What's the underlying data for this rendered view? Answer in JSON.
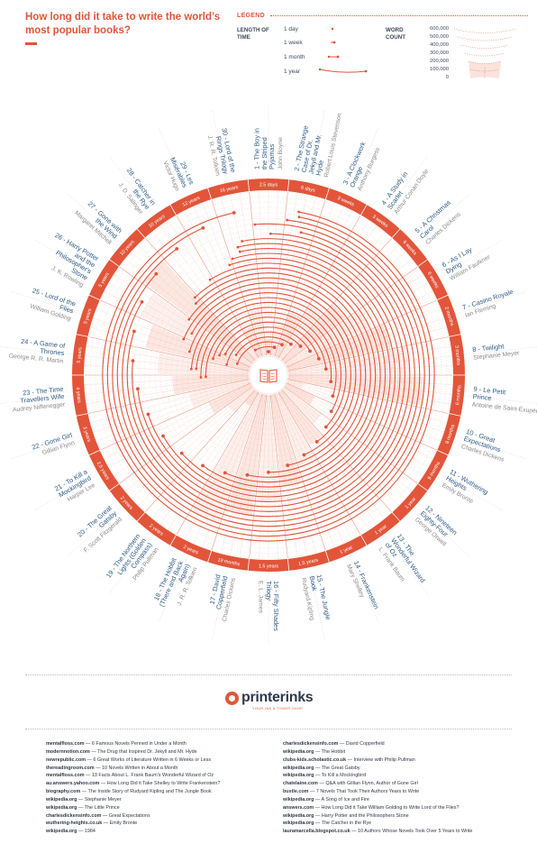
{
  "title": "How long did it take to write the world’s most popular books?",
  "legend": {
    "heading": "LEGEND",
    "length_title": "LENGTH OF TIME",
    "length_items": [
      "1 day",
      "1 week",
      "1 month",
      "1 year"
    ],
    "wordcount_title": "WORD COUNT",
    "wordcount_items": [
      "600,000",
      "500,000",
      "400,000",
      "300,000",
      "200,000",
      "100,000",
      "0"
    ]
  },
  "colors": {
    "accent": "#e2553a",
    "navy": "#2d3a4a",
    "blue": "#2f5c88",
    "grey": "#8a8a8a",
    "band": "#fbe3dc"
  },
  "chart_data": {
    "type": "radial",
    "title": "How long did it take to write the world’s most popular books?",
    "books": [
      {
        "n": "1",
        "title": "The Boy in the Striped Pyjamas",
        "author": "John Boyne",
        "time": "2.5 days",
        "years": 0.0068
      },
      {
        "n": "2",
        "title": "The Strange Case of Dr. Jekyll and Mr. Hyde",
        "author": "Robert Louis Stevenson",
        "time": "6 days",
        "years": 0.0164
      },
      {
        "n": "3",
        "title": "A Clockwork Orange",
        "author": "Anthony Burgess",
        "time": "3 weeks",
        "years": 0.0575
      },
      {
        "n": "4",
        "title": "A Study in Scarlet",
        "author": "Arthur Conan Doyle",
        "time": "3 weeks",
        "years": 0.0575
      },
      {
        "n": "5",
        "title": "A Christmas Carol",
        "author": "Charles Dickens",
        "time": "6 weeks",
        "years": 0.115
      },
      {
        "n": "6",
        "title": "As I Lay Dying",
        "author": "William Faulkner",
        "time": "6 weeks",
        "years": 0.115
      },
      {
        "n": "7",
        "title": "Casino Royale",
        "author": "Ian Fleming",
        "time": "2 months",
        "years": 0.1667
      },
      {
        "n": "8",
        "title": "Twilight",
        "author": "Stephanie Meyer",
        "time": "3 months",
        "years": 0.25
      },
      {
        "n": "9",
        "title": "Le Petit Prince",
        "author": "Antoine de Saint-Exupéry",
        "time": "6 months",
        "years": 0.5
      },
      {
        "n": "10",
        "title": "Great Expectations",
        "author": "Charles Dickens",
        "time": "8 months",
        "years": 0.6667
      },
      {
        "n": "11",
        "title": "Wuthering Heights",
        "author": "Emily Brontë",
        "time": "9 months",
        "years": 0.75
      },
      {
        "n": "12",
        "title": "Nineteen Eighty-Four",
        "author": "George Orwell",
        "time": "1 year",
        "years": 1
      },
      {
        "n": "13",
        "title": "The Wonderful Wizard of Oz",
        "author": "L. Frank Baum",
        "time": "1 year",
        "years": 1
      },
      {
        "n": "14",
        "title": "Frankenstein",
        "author": "Mary Shelley",
        "time": "1 year",
        "years": 1
      },
      {
        "n": "15",
        "title": "The Jungle Book",
        "author": "Rudyard Kipling",
        "time": "1.5 years",
        "years": 1.5
      },
      {
        "n": "16",
        "title": "Fifty Shades Trilogy",
        "author": "E. L. James",
        "time": "1.5 years",
        "years": 1.5
      },
      {
        "n": "17",
        "title": "David Copperfield",
        "author": "Charles Dickens",
        "time": "19 months",
        "years": 1.5833
      },
      {
        "n": "18",
        "title": "The Hobbit (There and Back Again)",
        "author": "J. R. R. Tolkien",
        "time": "2 years",
        "years": 2
      },
      {
        "n": "19",
        "title": "The Northern Lights (Golden Compass)",
        "author": "Philip Pullman",
        "time": "2 years",
        "years": 2
      },
      {
        "n": "20",
        "title": "The Great Gatsby",
        "author": "F. Scott Fitzgerald",
        "time": "2 years",
        "years": 2
      },
      {
        "n": "21",
        "title": "To Kill a Mockingbird",
        "author": "Harper Lee",
        "time": "2.5 years",
        "years": 2.5
      },
      {
        "n": "22",
        "title": "Gone Girl",
        "author": "Gillian Flynn",
        "time": "3 years",
        "years": 3
      },
      {
        "n": "23",
        "title": "The Time Travellers Wife",
        "author": "Audrey Niffenegger",
        "time": "4 years",
        "years": 4
      },
      {
        "n": "24",
        "title": "A Game of Thrones",
        "author": "George R. R. Martin",
        "time": "5 years",
        "years": 5
      },
      {
        "n": "25",
        "title": "Lord of the Flies",
        "author": "William Golding",
        "time": "5 years",
        "years": 5
      },
      {
        "n": "26",
        "title": "Harry Potter and the Philosopher's Stone",
        "author": "J. K. Rowling",
        "time": "5 years",
        "years": 5
      },
      {
        "n": "27",
        "title": "Gone with the Wind",
        "author": "Margaret Mitchell",
        "time": "10 years",
        "years": 10
      },
      {
        "n": "28",
        "title": "Catcher in the Rye",
        "author": "J. D. Salinger",
        "time": "10 years",
        "years": 10
      },
      {
        "n": "29",
        "title": "Les Misérables",
        "author": "Victor Hugo",
        "time": "12 years",
        "years": 12
      },
      {
        "n": "30",
        "title": "Lord of the Rings Trilogy",
        "author": "J. R. R. Tolkien",
        "time": "16 years",
        "years": 16
      }
    ]
  },
  "brand": {
    "name": "printerinks",
    "tagline": "YOUR INK & TONER SHOP"
  },
  "sources_left": [
    {
      "site": "mentalfloss.com",
      "text": "6 Famous Novels Penned in Under a Month"
    },
    {
      "site": "modernnotion.com",
      "text": "The Drug that Inspired Dr. Jekyll and Mr. Hyde"
    },
    {
      "site": "newrepublic.com",
      "text": "6 Great Works of Literature Written in 6 Weeks or Less"
    },
    {
      "site": "thereadingroom.com",
      "text": "10 Novels Written in About a Month"
    },
    {
      "site": "mentalfloss.com",
      "text": "13 Facts About L. Frank Baum's Wonderful Wizard of Oz"
    },
    {
      "site": "au.answers.yahoo.com",
      "text": "How Long Did it Take Shelley to Write Frankenstein?"
    },
    {
      "site": "biography.com",
      "text": "The Inside Story of Rudyard Kipling and The Jungle Book"
    },
    {
      "site": "wikipedia.org",
      "text": "Stephanie Meyer"
    },
    {
      "site": "wikipedia.org",
      "text": "The Little Prince"
    },
    {
      "site": "charlesdickensinfo.com",
      "text": "Great Expectations"
    },
    {
      "site": "wuthering-heights.co.uk",
      "text": "Emily Bronte"
    },
    {
      "site": "wikipedia.org",
      "text": "1984"
    }
  ],
  "sources_right": [
    {
      "site": "charlesdickensinfo.com",
      "text": "David Copperfield"
    },
    {
      "site": "wikipedia.org",
      "text": "The Hobbit"
    },
    {
      "site": "clubs-kids.scholastic.co.uk",
      "text": "Interview with Philip Pullman"
    },
    {
      "site": "wikipedia.org",
      "text": "The Great Gatsby"
    },
    {
      "site": "wikipedia.org",
      "text": "To Kill a Mockingbird"
    },
    {
      "site": "chatelaine.com",
      "text": "Q&A with Gillian Flynn, Author of Gone Girl"
    },
    {
      "site": "bustle.com",
      "text": "7 Novels That Took Their Authors Years to Write"
    },
    {
      "site": "wikipedia.org",
      "text": "A Song of Ice and Fire"
    },
    {
      "site": "answers.com",
      "text": "How Long Did it Take William Golding to Write Lord of the Flies?"
    },
    {
      "site": "wikipedia.org",
      "text": "Harry Potter and the Philosophers Stone"
    },
    {
      "site": "wikipedia.org",
      "text": "The Catcher in the Rye"
    },
    {
      "site": "lauramarcella.blogspot.co.uk",
      "text": "10 Authors Whose Novels Took Over 5 Years to Write"
    }
  ]
}
